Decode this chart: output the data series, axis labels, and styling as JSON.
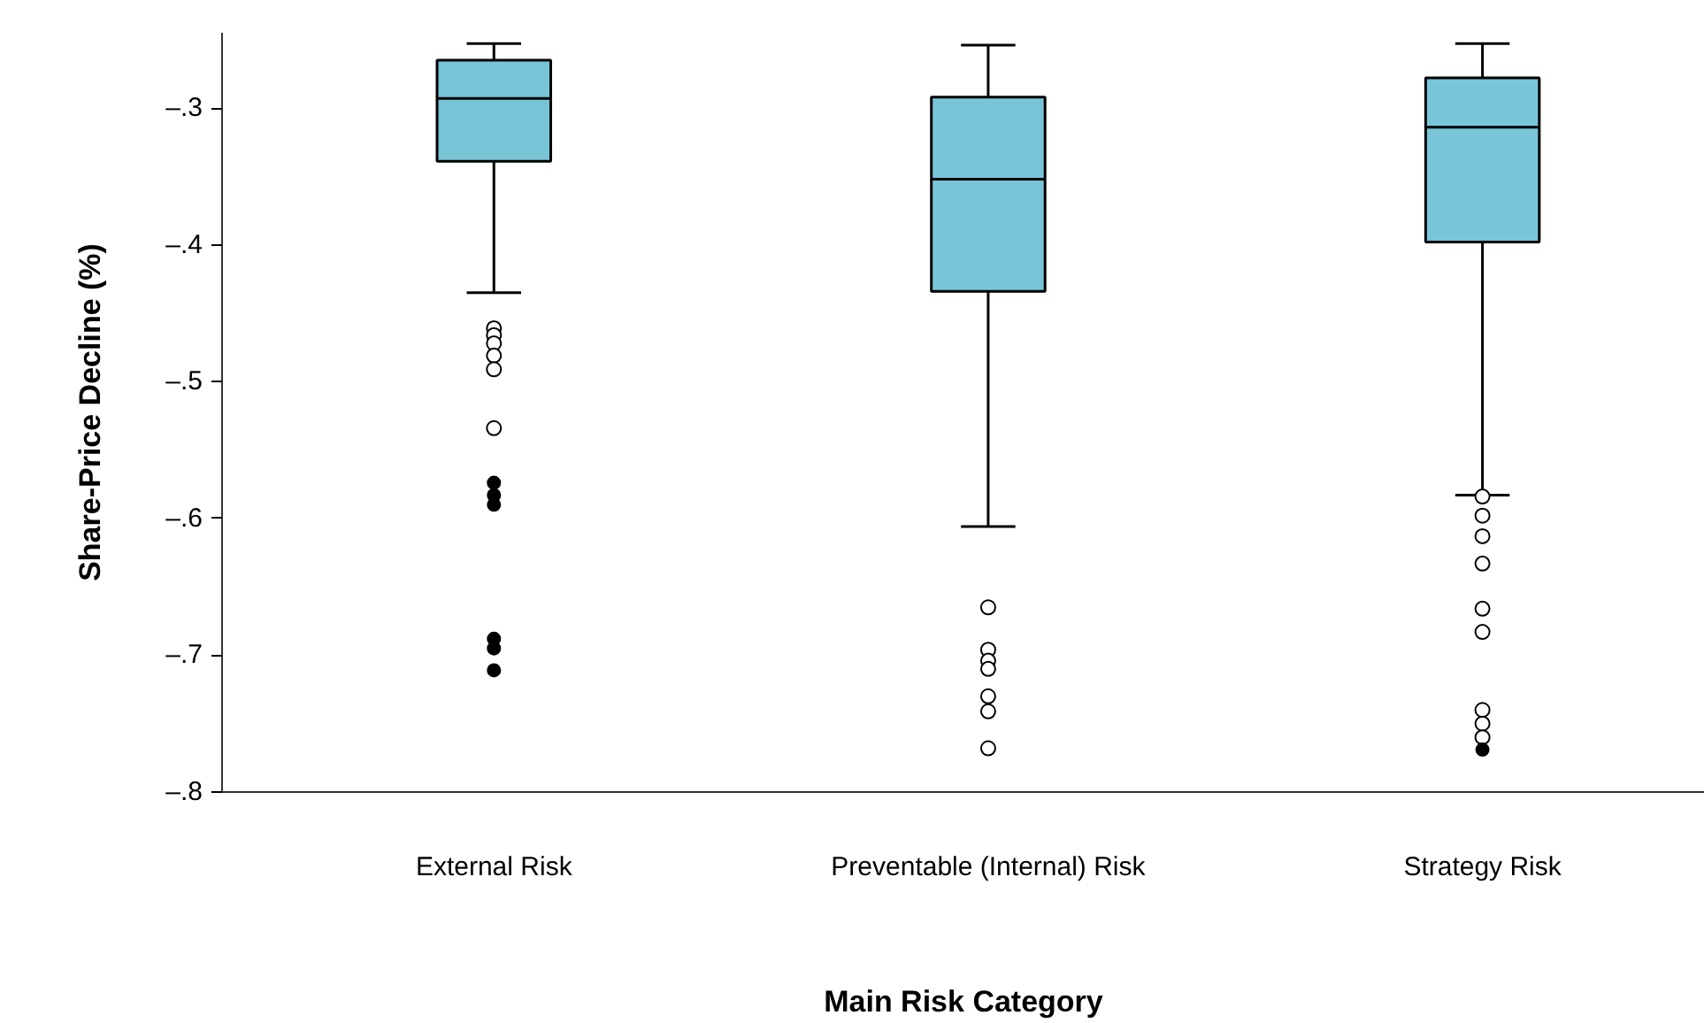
{
  "chart_data": {
    "type": "box",
    "xlabel": "Main Risk Category",
    "ylabel": "Share-Price Decline (%)",
    "categories": [
      "External Risk",
      "Preventable (Internal) Risk",
      "Strategy Risk"
    ],
    "ylim": [
      -0.8,
      -0.245
    ],
    "yticks": [
      {
        "value": -0.8,
        "label": "–.8"
      },
      {
        "value": -0.7,
        "label": "–.7"
      },
      {
        "value": -0.6,
        "label": "–.6"
      },
      {
        "value": -0.5,
        "label": "–.5"
      },
      {
        "value": -0.4,
        "label": "–.4"
      },
      {
        "value": -0.3,
        "label": "–.3"
      }
    ],
    "grid": false,
    "series": [
      {
        "color": "#78c5d8",
        "boxes": [
          {
            "low": -0.435,
            "q1": -0.339,
            "median": -0.293,
            "q3": -0.265,
            "high": -0.253,
            "outliers": [
              -0.461,
              -0.466,
              -0.472,
              -0.481,
              -0.491,
              -0.534
            ]
          },
          {
            "low": -0.606,
            "q1": -0.434,
            "median": -0.352,
            "q3": -0.292,
            "high": -0.254,
            "outliers": [
              -0.665,
              -0.696,
              -0.704,
              -0.71,
              -0.73,
              -0.741,
              -0.768
            ]
          },
          {
            "low": -0.583,
            "q1": -0.398,
            "median": -0.314,
            "q3": -0.278,
            "high": -0.253,
            "outliers": [
              -0.584,
              -0.598,
              -0.613,
              -0.633,
              -0.666,
              -0.683,
              -0.74,
              -0.75,
              -0.76
            ]
          }
        ]
      },
      {
        "type": "scatter",
        "color": "#000000",
        "marker": "circle",
        "x": [
          "External Risk",
          "External Risk",
          "External Risk",
          "External Risk",
          "External Risk",
          "External Risk",
          "Strategy Risk"
        ],
        "values": [
          -0.574,
          -0.583,
          -0.59,
          -0.688,
          -0.695,
          -0.711,
          -0.769
        ]
      }
    ]
  }
}
